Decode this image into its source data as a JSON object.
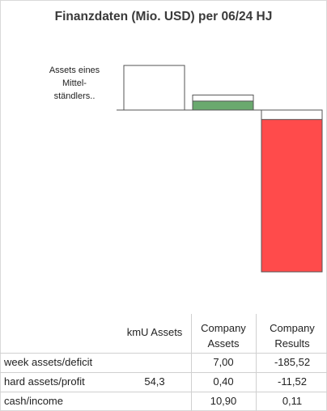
{
  "title": "Finanzdaten (Mio. USD) per 06/24 HJ",
  "annotation": "Assets eines Mittel-ständlers..",
  "colors": {
    "outline": "#555555",
    "company_assets_fill": "#6aa96e",
    "company_results_fill": "#ff4b4b",
    "grid": "#d0d0d0"
  },
  "chart_data": {
    "type": "table",
    "categories": [
      "kmU Assets",
      "Company Assets",
      "Company Results"
    ],
    "series": [
      {
        "name": "week assets/deficit",
        "values": [
          null,
          7.0,
          -185.52
        ]
      },
      {
        "name": "hard assets/profit",
        "values": [
          54.3,
          0.4,
          -11.52
        ]
      },
      {
        "name": "cash/income",
        "values": [
          null,
          10.9,
          0.11
        ]
      }
    ],
    "bars": [
      {
        "category": "kmU Assets",
        "total": 54.3,
        "inner": 0
      },
      {
        "category": "Company Assets",
        "total": 18.3,
        "inner": 10.9
      },
      {
        "category": "Company Results",
        "total": -197.04,
        "inner": -185.52
      }
    ]
  },
  "table": {
    "headers": [
      "kmU Assets",
      "Company Assets",
      "Company Results"
    ],
    "rows": [
      {
        "label": "week assets/deficit",
        "cells": [
          "",
          "7,00",
          "-185,52"
        ]
      },
      {
        "label": "hard assets/profit",
        "cells": [
          "54,3",
          "0,40",
          "-11,52"
        ]
      },
      {
        "label": "cash/income",
        "cells": [
          "",
          "10,90",
          "0,11"
        ]
      }
    ]
  }
}
